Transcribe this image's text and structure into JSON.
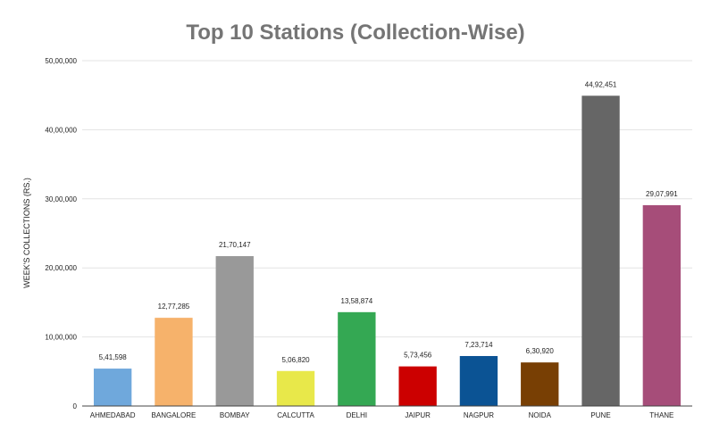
{
  "chart_data": {
    "type": "bar",
    "title": "Top 10 Stations (Collection-Wise)",
    "xlabel": "",
    "ylabel": "WEEK'S COLLECTIONS (RS.)",
    "ylim": [
      0,
      5000000
    ],
    "yticks": [
      0,
      1000000,
      2000000,
      3000000,
      4000000,
      5000000
    ],
    "ytick_labels": [
      "0",
      "10,00,000",
      "20,00,000",
      "30,00,000",
      "40,00,000",
      "50,00,000"
    ],
    "grid": true,
    "legend": "none",
    "categories": [
      "AHMEDABAD",
      "BANGALORE",
      "BOMBAY",
      "CALCUTTA",
      "DELHI",
      "JAIPUR",
      "NAGPUR",
      "NOIDA",
      "PUNE",
      "THANE"
    ],
    "values": [
      541598,
      1277285,
      2170147,
      506820,
      1358874,
      573456,
      723714,
      630920,
      4492451,
      2907991
    ],
    "value_labels": [
      "5,41,598",
      "12,77,285",
      "21,70,147",
      "5,06,820",
      "13,58,874",
      "5,73,456",
      "7,23,714",
      "6,30,920",
      "44,92,451",
      "29,07,991"
    ],
    "colors": [
      "#6fa8dc",
      "#f6b26b",
      "#999999",
      "#e8e84a",
      "#34a853",
      "#cc0000",
      "#0b5394",
      "#783f04",
      "#666666",
      "#a64d79"
    ]
  }
}
